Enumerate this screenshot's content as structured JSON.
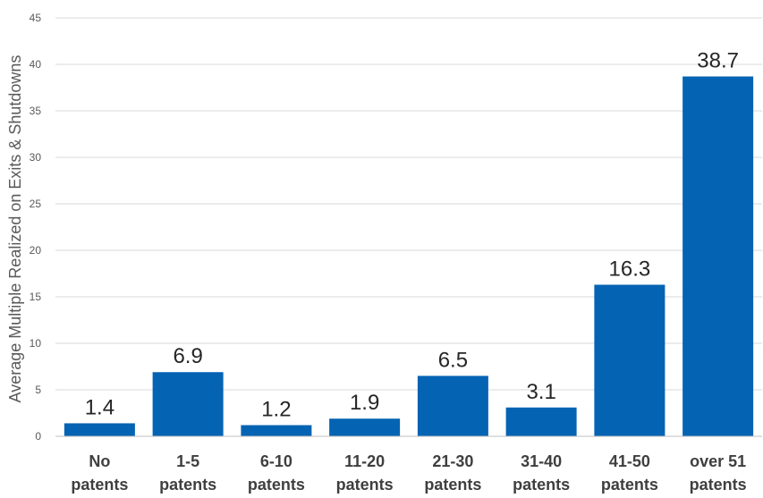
{
  "chart_data": {
    "type": "bar",
    "ylabel": "Average Multiple Realized on Exits & Shutdowns",
    "xlabel": "",
    "title": "",
    "ylim": [
      0,
      45
    ],
    "yticks": [
      0,
      5,
      10,
      15,
      20,
      25,
      30,
      35,
      40,
      45
    ],
    "grid": true,
    "legend": "none",
    "bar_color": "#0563b3",
    "categories": [
      [
        "No",
        "patents"
      ],
      [
        "1-5",
        "patents"
      ],
      [
        "6-10",
        "patents"
      ],
      [
        "11-20",
        "patents"
      ],
      [
        "21-30",
        "patents"
      ],
      [
        "31-40",
        "patents"
      ],
      [
        "41-50",
        "patents"
      ],
      [
        "over 51",
        "patents"
      ]
    ],
    "values": [
      1.4,
      6.9,
      1.2,
      1.9,
      6.5,
      3.1,
      16.3,
      38.7
    ],
    "value_labels": [
      "1.4",
      "6.9",
      "1.2",
      "1.9",
      "6.5",
      "3.1",
      "16.3",
      "38.7"
    ]
  }
}
